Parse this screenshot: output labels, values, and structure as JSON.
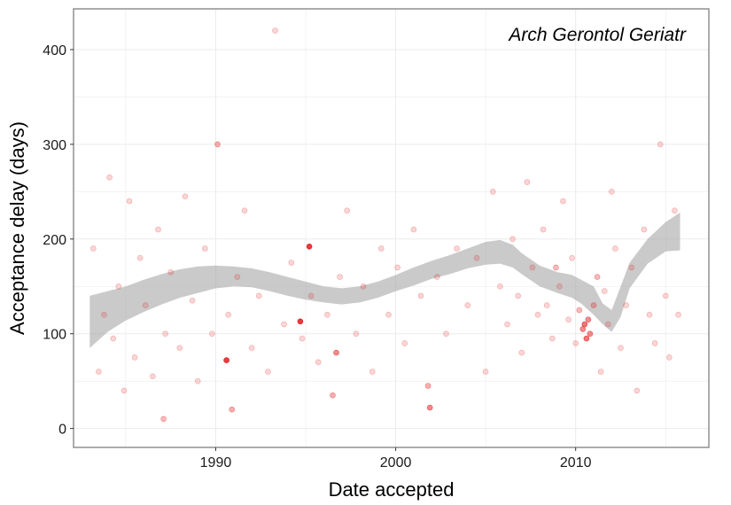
{
  "chart_data": {
    "type": "scatter",
    "title": "",
    "panel_label": "Arch Gerontol Geriatr",
    "xlabel": "Date accepted",
    "ylabel": "Acceptance delay (days)",
    "xlim": [
      1982.1,
      2017.4
    ],
    "ylim": [
      -20,
      443
    ],
    "x_ticks": [
      1990,
      2000,
      2010
    ],
    "x_tick_labels": [
      "1990",
      "2000",
      "2010"
    ],
    "y_ticks": [
      0,
      100,
      200,
      300,
      400
    ],
    "y_tick_labels": [
      "0",
      "100",
      "200",
      "300",
      "400"
    ],
    "grid": true,
    "legend": "none",
    "colors": {
      "points": "#e41a1c",
      "smooth_band": "#9e9e9e",
      "grid": "#ebebeb",
      "border": "#7f7f7f"
    },
    "smooth": {
      "method": "loess confidence band",
      "x": [
        1983,
        1984,
        1985,
        1986,
        1987,
        1988,
        1989,
        1990,
        1991,
        1992,
        1993,
        1994,
        1995,
        1996,
        1997,
        1998,
        1999,
        2000,
        2001,
        2002,
        2003,
        2004,
        2005,
        2005.8,
        2006.5,
        2007,
        2008,
        2009,
        2009.8,
        2010.3,
        2011,
        2011.5,
        2012,
        2012.5,
        2013,
        2014,
        2015,
        2015.8
      ],
      "upper": [
        140,
        145,
        150,
        157,
        163,
        168,
        171,
        172,
        171,
        169,
        165,
        160,
        155,
        150,
        148,
        150,
        155,
        162,
        170,
        177,
        183,
        190,
        197,
        199,
        194,
        185,
        172,
        165,
        162,
        157,
        150,
        132,
        125,
        150,
        175,
        200,
        218,
        228
      ],
      "lower": [
        85,
        102,
        114,
        123,
        131,
        138,
        143,
        148,
        150,
        149,
        145,
        140,
        136,
        133,
        131,
        133,
        138,
        145,
        151,
        158,
        163,
        169,
        173,
        174,
        170,
        163,
        150,
        143,
        138,
        132,
        120,
        110,
        102,
        118,
        148,
        174,
        187,
        188
      ]
    },
    "series": [
      {
        "x": [
          1983.2,
          1983.5,
          1983.8,
          1984.1,
          1984.3,
          1984.6,
          1984.9,
          1985.2,
          1985.5,
          1985.8,
          1986.1,
          1986.5,
          1986.8,
          1987.1,
          1987.2,
          1987.5,
          1988.0,
          1988.3,
          1988.7,
          1989.0,
          1989.4,
          1989.8,
          1990.1,
          1990.6,
          1990.7,
          1990.9,
          1991.2,
          1991.6,
          1992.0,
          1992.4,
          1992.9,
          1993.3,
          1993.8,
          1994.2,
          1994.7,
          1994.8,
          1995.2,
          1995.3,
          1995.7,
          1996.2,
          1996.5,
          1996.7,
          1996.9,
          1997.3,
          1997.8,
          1998.2,
          1998.7,
          1999.2,
          1999.6,
          2000.1,
          2000.5,
          2001.0,
          2001.4,
          2001.8,
          2001.9,
          2002.3,
          2002.8,
          2003.4,
          2004.0,
          2004.5,
          2005.0,
          2005.4,
          2005.8,
          2006.2,
          2006.5,
          2006.8,
          2007.0,
          2007.3,
          2007.6,
          2007.9,
          2008.2,
          2008.4,
          2008.7,
          2008.9,
          2009.1,
          2009.3,
          2009.6,
          2009.8,
          2010.0,
          2010.2,
          2010.4,
          2010.5,
          2010.6,
          2010.7,
          2010.8,
          2011.0,
          2011.2,
          2011.4,
          2011.6,
          2011.8,
          2012.0,
          2012.2,
          2012.5,
          2012.8,
          2013.1,
          2013.4,
          2013.8,
          2014.1,
          2014.4,
          2014.7,
          2015.0,
          2015.2,
          2015.5,
          2015.7
        ],
        "y": [
          190,
          60,
          120,
          265,
          95,
          150,
          40,
          240,
          75,
          180,
          130,
          55,
          210,
          10,
          100,
          165,
          85,
          245,
          135,
          50,
          190,
          100,
          300,
          72,
          120,
          20,
          160,
          230,
          85,
          140,
          60,
          420,
          110,
          175,
          113,
          95,
          192,
          140,
          70,
          120,
          35,
          80,
          160,
          230,
          100,
          150,
          60,
          190,
          120,
          170,
          90,
          210,
          140,
          45,
          22,
          160,
          100,
          190,
          130,
          180,
          60,
          250,
          150,
          110,
          200,
          140,
          80,
          260,
          170,
          120,
          210,
          130,
          95,
          170,
          150,
          240,
          115,
          180,
          90,
          125,
          105,
          110,
          95,
          115,
          100,
          130,
          160,
          60,
          145,
          110,
          250,
          190,
          85,
          130,
          170,
          40,
          210,
          120,
          90,
          300,
          140,
          75,
          230,
          120
        ],
        "opacity": [
          0.18,
          0.18,
          0.18,
          0.18,
          0.18,
          0.18,
          0.18,
          0.18,
          0.18,
          0.18,
          0.18,
          0.18,
          0.18,
          0.3,
          0.18,
          0.18,
          0.18,
          0.18,
          0.18,
          0.18,
          0.18,
          0.18,
          0.35,
          0.85,
          0.18,
          0.35,
          0.18,
          0.18,
          0.18,
          0.18,
          0.18,
          0.18,
          0.18,
          0.18,
          0.85,
          0.18,
          0.85,
          0.18,
          0.18,
          0.18,
          0.35,
          0.5,
          0.18,
          0.18,
          0.18,
          0.18,
          0.18,
          0.18,
          0.18,
          0.18,
          0.18,
          0.18,
          0.18,
          0.35,
          0.5,
          0.18,
          0.18,
          0.18,
          0.18,
          0.18,
          0.18,
          0.18,
          0.18,
          0.18,
          0.18,
          0.18,
          0.18,
          0.18,
          0.18,
          0.18,
          0.18,
          0.18,
          0.18,
          0.3,
          0.18,
          0.18,
          0.18,
          0.18,
          0.18,
          0.3,
          0.5,
          0.6,
          0.6,
          0.5,
          0.5,
          0.3,
          0.3,
          0.18,
          0.18,
          0.18,
          0.18,
          0.18,
          0.18,
          0.18,
          0.18,
          0.18,
          0.18,
          0.18,
          0.18,
          0.18,
          0.18,
          0.18,
          0.18,
          0.18
        ]
      }
    ]
  }
}
